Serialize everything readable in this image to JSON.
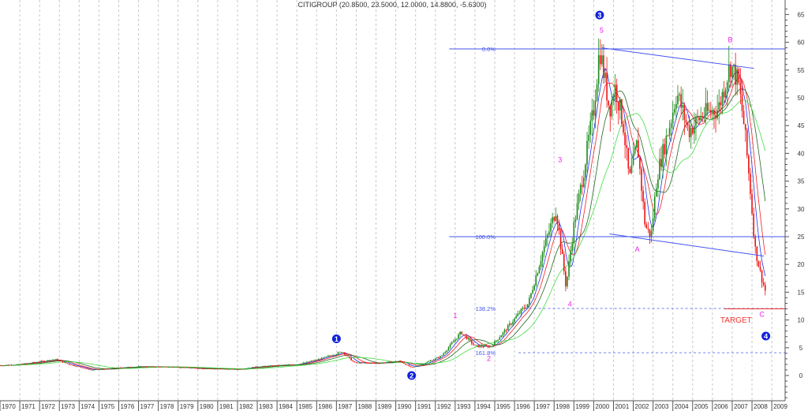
{
  "chart_data": {
    "type": "candlestick",
    "title": "CITIGROUP (20.8500, 23.5000, 12.0000, 14.8800, -5.6300)",
    "xlim": [
      1970,
      2009.4
    ],
    "ylim": [
      0,
      65
    ],
    "x_tick_labels": [
      "1970",
      "1971",
      "1972",
      "1973",
      "1974",
      "1975",
      "1976",
      "1977",
      "1978",
      "1979",
      "1980",
      "1981",
      "1982",
      "1983",
      "1984",
      "1985",
      "1986",
      "1987",
      "1988",
      "1989",
      "1990",
      "1991",
      "1992",
      "1993",
      "1994",
      "1995",
      "1996",
      "1997",
      "1998",
      "1999",
      "2000",
      "2001",
      "2002",
      "2003",
      "2004",
      "2005",
      "2006",
      "2007",
      "2008",
      "2009"
    ],
    "y_ticks": [
      0,
      5,
      10,
      15,
      20,
      25,
      30,
      35,
      40,
      45,
      50,
      55,
      60,
      65
    ],
    "grid": "vertical dashed",
    "colors": {
      "up": "#1a8a1a",
      "down": "#ee1111",
      "ma1": "#2233ee",
      "ma2": "#ee2222",
      "ma3": "#226622",
      "ma4": "#44dd44",
      "fib": "#4455ee",
      "wave": "#ee22ee",
      "target": "#ee3333",
      "count": "#1122dd"
    },
    "price_path": [
      [
        1970,
        1.8
      ],
      [
        1971,
        2.0
      ],
      [
        1972.8,
        2.9
      ],
      [
        1973.5,
        2.0
      ],
      [
        1974.6,
        1.0
      ],
      [
        1976,
        1.4
      ],
      [
        1977,
        1.6
      ],
      [
        1979,
        1.5
      ],
      [
        1980,
        1.3
      ],
      [
        1982,
        1.1
      ],
      [
        1983,
        1.6
      ],
      [
        1985,
        2.0
      ],
      [
        1986,
        2.8
      ],
      [
        1987.3,
        4.3
      ],
      [
        1987.9,
        2.3
      ],
      [
        1989,
        2.2
      ],
      [
        1990.2,
        2.6
      ],
      [
        1990.8,
        1.4
      ],
      [
        1991.5,
        2.3
      ],
      [
        1992.3,
        3.5
      ],
      [
        1993.3,
        7.8
      ],
      [
        1994,
        5.3
      ],
      [
        1994.8,
        5.2
      ],
      [
        1995.5,
        8
      ],
      [
        1996.3,
        11.5
      ],
      [
        1996.7,
        13
      ],
      [
        1997.4,
        22
      ],
      [
        1998.1,
        30
      ],
      [
        1998.6,
        16
      ],
      [
        1999,
        27
      ],
      [
        1999.5,
        37
      ],
      [
        2000,
        48
      ],
      [
        2000.3,
        59
      ],
      [
        2000.8,
        48
      ],
      [
        2001.1,
        52
      ],
      [
        2001.5,
        45
      ],
      [
        2001.8,
        35
      ],
      [
        2002.2,
        42
      ],
      [
        2002.6,
        27
      ],
      [
        2002.9,
        25
      ],
      [
        2003.2,
        36
      ],
      [
        2003.9,
        46
      ],
      [
        2004.2,
        51
      ],
      [
        2004.8,
        44
      ],
      [
        2005.5,
        47
      ],
      [
        2006.3,
        48
      ],
      [
        2006.9,
        56
      ],
      [
        2007.3,
        53
      ],
      [
        2007.6,
        45
      ],
      [
        2007.9,
        34
      ],
      [
        2008.15,
        23
      ],
      [
        2008.45,
        18
      ],
      [
        2008.7,
        14.88
      ]
    ],
    "moving_averages_months": [
      6,
      10,
      17,
      30
    ],
    "fib_levels": [
      {
        "label": "0.0%",
        "price": 58.8
      },
      {
        "label": "100.0%",
        "price": 25
      },
      {
        "label": "138.2%",
        "price": 12.07,
        "dashed": true
      },
      {
        "label": "161.8%",
        "price": 4.1,
        "dashed": true
      }
    ],
    "trendlines": [
      {
        "from": [
          2000.4,
          59
        ],
        "to": [
          2008.1,
          55.3
        ]
      },
      {
        "from": [
          2000.8,
          25.5
        ],
        "to": [
          2008.6,
          21.5
        ]
      }
    ],
    "target": {
      "label": "TARGET",
      "price": 12.0,
      "from": 2006.6
    },
    "wave_labels": [
      {
        "text": "1",
        "x": 1993,
        "y": 10.4
      },
      {
        "text": "2",
        "x": 1994.7,
        "y": 2.6
      },
      {
        "text": "3",
        "x": 1998.3,
        "y": 38.4
      },
      {
        "text": "4",
        "x": 1998.8,
        "y": 12.4
      },
      {
        "text": "5",
        "x": 2000.4,
        "y": 61.7
      },
      {
        "text": "A",
        "x": 2002.2,
        "y": 22.3
      },
      {
        "text": "B",
        "x": 2006.9,
        "y": 60
      },
      {
        "text": "C",
        "x": 2008.5,
        "y": 10.6
      }
    ],
    "count_markers": [
      {
        "text": "1",
        "x": 1987,
        "y": 6.6
      },
      {
        "text": "2",
        "x": 1990.8,
        "y": 0
      },
      {
        "text": "3",
        "x": 2000.3,
        "y": 64.9
      },
      {
        "text": "4",
        "x": 2008.7,
        "y": 7.1
      }
    ]
  }
}
